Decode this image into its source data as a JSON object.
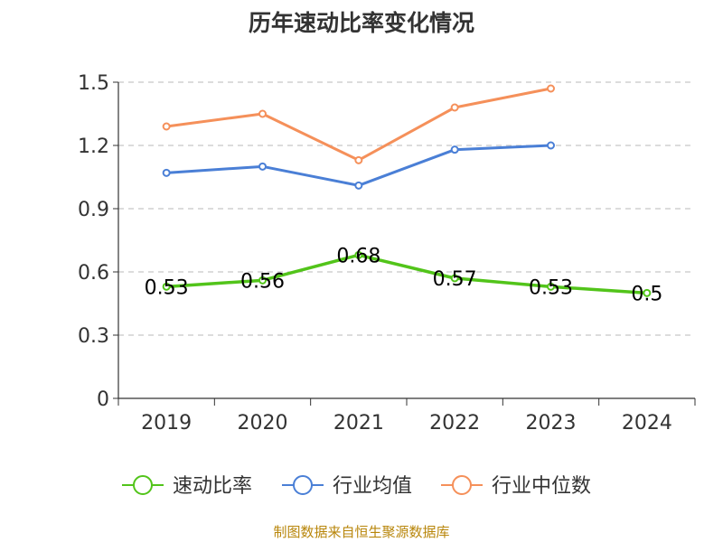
{
  "chart_data": {
    "type": "line",
    "title": "历年速动比率变化情况",
    "categories": [
      "2019",
      "2020",
      "2021",
      "2022",
      "2023",
      "2024"
    ],
    "ylim": [
      0,
      1.5
    ],
    "yticks": [
      "0",
      "0.3",
      "0.6",
      "0.9",
      "1.2",
      "1.5"
    ],
    "grid": true,
    "legend_position": "bottom",
    "series": [
      {
        "name": "速动比率",
        "color": "#52c41a",
        "values": [
          0.53,
          0.56,
          0.68,
          0.57,
          0.53,
          0.5
        ],
        "labels": [
          "0.53",
          "0.56",
          "0.68",
          "0.57",
          "0.53",
          "0.5"
        ]
      },
      {
        "name": "行业均值",
        "color": "#4a7fd6",
        "values": [
          1.07,
          1.1,
          1.01,
          1.18,
          1.2,
          null
        ]
      },
      {
        "name": "行业中位数",
        "color": "#f5905a",
        "values": [
          1.29,
          1.35,
          1.13,
          1.38,
          1.47,
          null
        ]
      }
    ]
  },
  "source": "制图数据来自恒生聚源数据库"
}
